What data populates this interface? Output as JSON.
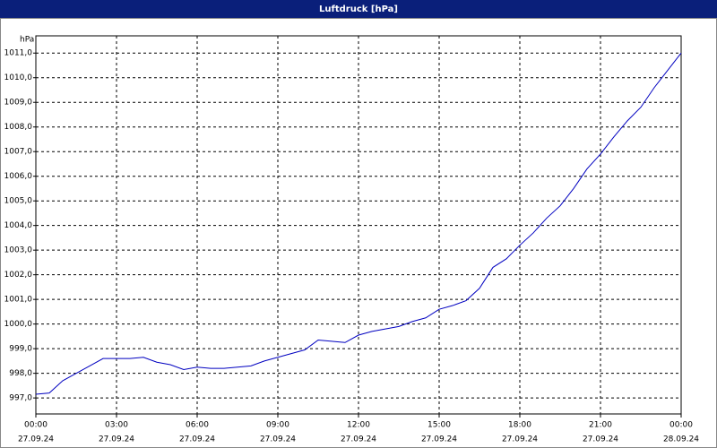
{
  "chart_data": {
    "type": "line",
    "title": "Luftdruck [hPa]",
    "y_label": "hPa",
    "x": [
      0,
      0.5,
      1,
      1.5,
      2,
      2.5,
      3,
      3.5,
      4,
      4.5,
      5,
      5.5,
      6,
      6.5,
      7,
      7.5,
      8,
      8.5,
      9,
      9.5,
      10,
      10.5,
      11,
      11.5,
      12,
      12.5,
      13,
      13.5,
      14,
      14.5,
      15,
      15.5,
      16,
      16.5,
      17,
      17.5,
      18,
      18.5,
      19,
      19.5,
      20,
      20.5,
      21,
      21.5,
      22,
      22.5,
      23,
      23.5,
      24
    ],
    "series": [
      {
        "name": "Luftdruck",
        "color": "#0000c0",
        "values": [
          997.15,
          997.2,
          997.7,
          998.0,
          998.3,
          998.6,
          998.6,
          998.6,
          998.65,
          998.45,
          998.35,
          998.15,
          998.25,
          998.2,
          998.2,
          998.25,
          998.3,
          998.5,
          998.65,
          998.8,
          998.95,
          999.35,
          999.3,
          999.25,
          999.55,
          999.7,
          999.8,
          999.9,
          1000.1,
          1000.25,
          1000.6,
          1000.75,
          1000.95,
          1001.45,
          1002.3,
          1002.65,
          1003.2,
          1003.7,
          1004.3,
          1004.8,
          1005.5,
          1006.3,
          1006.9,
          1007.6,
          1008.25,
          1008.8,
          1009.6,
          1010.3,
          1011.0
        ]
      }
    ],
    "xlim": [
      0,
      24
    ],
    "xticks": [
      {
        "value": 0,
        "label": "00:00",
        "date": "27.09.24"
      },
      {
        "value": 3,
        "label": "03:00",
        "date": "27.09.24"
      },
      {
        "value": 6,
        "label": "06:00",
        "date": "27.09.24"
      },
      {
        "value": 9,
        "label": "09:00",
        "date": "27.09.24"
      },
      {
        "value": 12,
        "label": "12:00",
        "date": "27.09.24"
      },
      {
        "value": 15,
        "label": "15:00",
        "date": "27.09.24"
      },
      {
        "value": 18,
        "label": "18:00",
        "date": "27.09.24"
      },
      {
        "value": 21,
        "label": "21:00",
        "date": "27.09.24"
      },
      {
        "value": 24,
        "label": "00:00",
        "date": "28.09.24"
      }
    ],
    "ylim": [
      996.35,
      1011.7
    ],
    "yticks": [
      {
        "value": 997,
        "label": "997,0"
      },
      {
        "value": 998,
        "label": "998,0"
      },
      {
        "value": 999,
        "label": "999,0"
      },
      {
        "value": 1000,
        "label": "1000,0"
      },
      {
        "value": 1001,
        "label": "1001,0"
      },
      {
        "value": 1002,
        "label": "1002,0"
      },
      {
        "value": 1003,
        "label": "1003,0"
      },
      {
        "value": 1004,
        "label": "1004,0"
      },
      {
        "value": 1005,
        "label": "1005,0"
      },
      {
        "value": 1006,
        "label": "1006,0"
      },
      {
        "value": 1007,
        "label": "1007,0"
      },
      {
        "value": 1008,
        "label": "1008,0"
      },
      {
        "value": 1009,
        "label": "1009,0"
      },
      {
        "value": 1010,
        "label": "1010,0"
      },
      {
        "value": 1011,
        "label": "1011,0"
      }
    ],
    "grid": true
  }
}
